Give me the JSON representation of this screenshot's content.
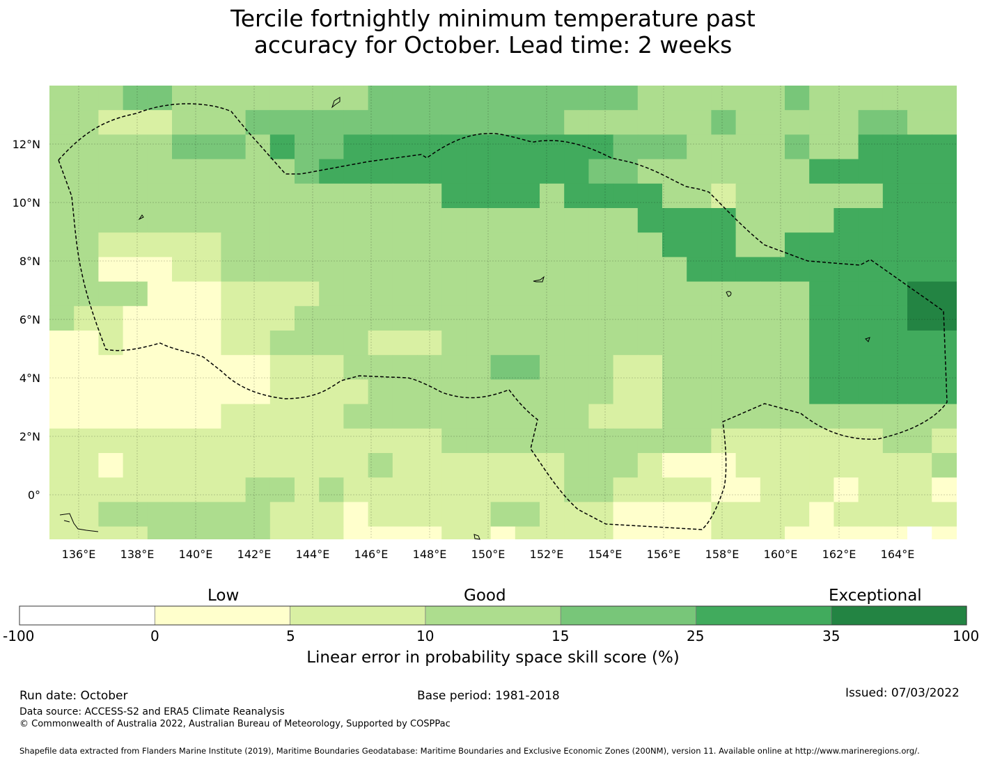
{
  "title_line1": "Tercile fortnightly minimum temperature past",
  "title_line2": "accuracy for October. Lead time: 2 weeks",
  "map": {
    "lon_ticks": [
      "136°E",
      "138°E",
      "140°E",
      "142°E",
      "144°E",
      "146°E",
      "148°E",
      "150°E",
      "152°E",
      "154°E",
      "156°E",
      "158°E",
      "160°E",
      "162°E",
      "164°E"
    ],
    "lat_ticks": [
      "12°N",
      "10°N",
      "8°N",
      "6°N",
      "4°N",
      "2°N",
      "0°"
    ],
    "grid": true
  },
  "colorbar": {
    "category_labels": [
      "Low",
      "Good",
      "Exceptional"
    ],
    "tick_labels": [
      "-100",
      "0",
      "5",
      "10",
      "15",
      "25",
      "35",
      "100"
    ],
    "colors": [
      "#ffffff",
      "#ffffcc",
      "#d9f0a3",
      "#addd8e",
      "#78c679",
      "#41ab5d",
      "#238443"
    ],
    "label": "Linear error in probability space skill score (%)"
  },
  "footer": {
    "run_date": "Run date: October",
    "base_period": "Base period: 1981-2018",
    "issued": "Issued: 07/03/2022",
    "data_source": "Data source: ACCESS-S2 and ERA5 Climate Reanalysis",
    "copyright": "© Commonwealth of Australia 2022, Australian Bureau of Meteorology, Supported by COSPPac",
    "shapefile": "Shapefile data extracted from Flanders Marine Institute (2019), Maritime Boundaries Geodatabase: Maritime Boundaries and Exclusive Economic Zones (200NM), version 11. Available online at http://www.marineregions.org/."
  }
}
